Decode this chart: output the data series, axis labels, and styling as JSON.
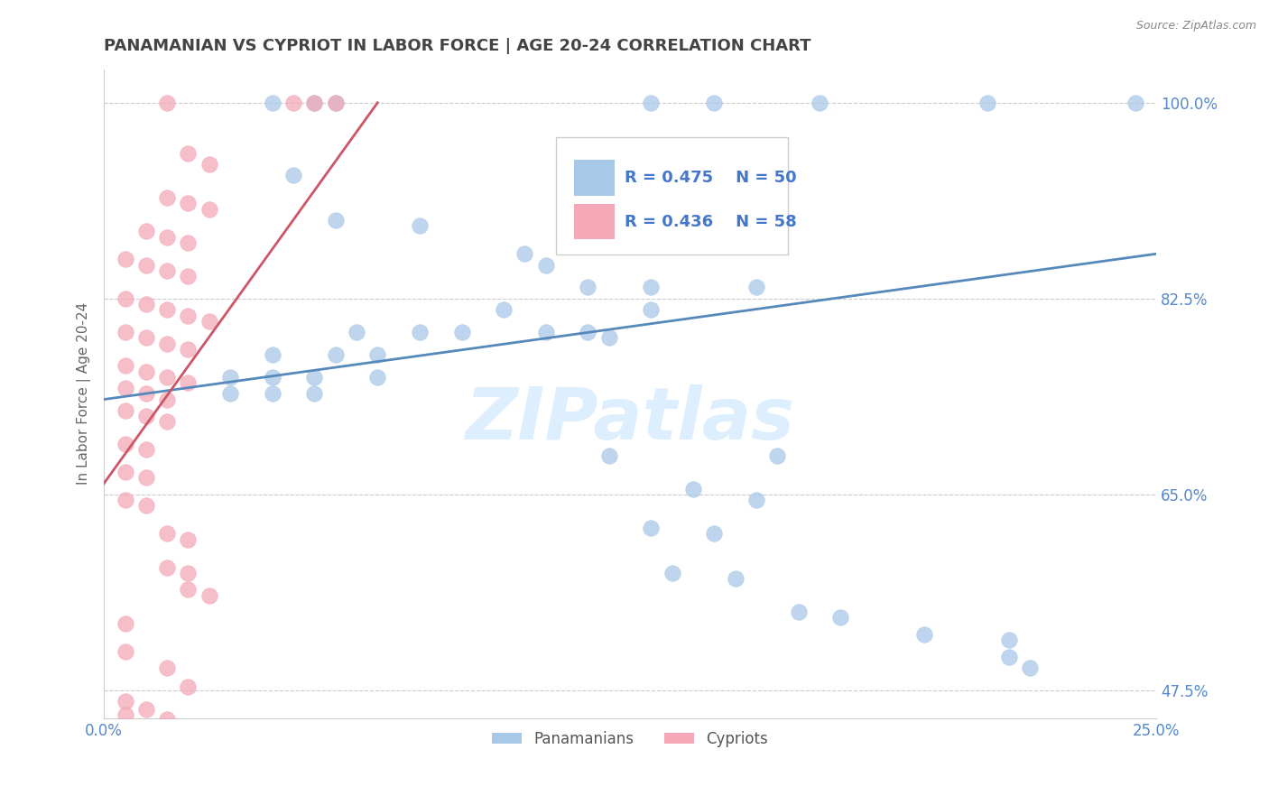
{
  "title": "PANAMANIAN VS CYPRIOT IN LABOR FORCE | AGE 20-24 CORRELATION CHART",
  "source": "Source: ZipAtlas.com",
  "ylabel": "In Labor Force | Age 20-24",
  "xlim": [
    0.0,
    0.25
  ],
  "ylim": [
    0.45,
    1.03
  ],
  "yticks": [
    0.475,
    0.65,
    0.825,
    1.0
  ],
  "ytick_labels": [
    "47.5%",
    "65.0%",
    "82.5%",
    "100.0%"
  ],
  "xticks": [
    0.0,
    0.03125,
    0.0625,
    0.09375,
    0.125,
    0.15625,
    0.1875,
    0.21875,
    0.25
  ],
  "xtick_labels": [
    "0.0%",
    "",
    "",
    "",
    "",
    "",
    "",
    "",
    "25.0%"
  ],
  "legend_r_blue": "R = 0.475",
  "legend_n_blue": "N = 50",
  "legend_r_pink": "R = 0.436",
  "legend_n_pink": "N = 58",
  "blue_color": "#a8c8e8",
  "pink_color": "#f4a8b8",
  "blue_fill": "#a8c8e8",
  "pink_fill": "#f4a8b8",
  "blue_line_color": "#5588bb",
  "pink_line_color": "#cc5566",
  "blue_scatter": [
    [
      0.04,
      1.0
    ],
    [
      0.05,
      1.0
    ],
    [
      0.055,
      1.0
    ],
    [
      0.13,
      1.0
    ],
    [
      0.145,
      1.0
    ],
    [
      0.17,
      1.0
    ],
    [
      0.21,
      1.0
    ],
    [
      0.245,
      1.0
    ],
    [
      0.045,
      0.935
    ],
    [
      0.055,
      0.895
    ],
    [
      0.075,
      0.89
    ],
    [
      0.1,
      0.865
    ],
    [
      0.105,
      0.855
    ],
    [
      0.115,
      0.835
    ],
    [
      0.13,
      0.835
    ],
    [
      0.155,
      0.835
    ],
    [
      0.095,
      0.815
    ],
    [
      0.13,
      0.815
    ],
    [
      0.06,
      0.795
    ],
    [
      0.075,
      0.795
    ],
    [
      0.085,
      0.795
    ],
    [
      0.105,
      0.795
    ],
    [
      0.115,
      0.795
    ],
    [
      0.12,
      0.79
    ],
    [
      0.04,
      0.775
    ],
    [
      0.055,
      0.775
    ],
    [
      0.065,
      0.775
    ],
    [
      0.03,
      0.755
    ],
    [
      0.04,
      0.755
    ],
    [
      0.05,
      0.755
    ],
    [
      0.065,
      0.755
    ],
    [
      0.03,
      0.74
    ],
    [
      0.04,
      0.74
    ],
    [
      0.05,
      0.74
    ],
    [
      0.12,
      0.685
    ],
    [
      0.16,
      0.685
    ],
    [
      0.14,
      0.655
    ],
    [
      0.155,
      0.645
    ],
    [
      0.13,
      0.62
    ],
    [
      0.145,
      0.615
    ],
    [
      0.135,
      0.58
    ],
    [
      0.15,
      0.575
    ],
    [
      0.165,
      0.545
    ],
    [
      0.175,
      0.54
    ],
    [
      0.195,
      0.525
    ],
    [
      0.215,
      0.52
    ],
    [
      0.215,
      0.505
    ],
    [
      0.22,
      0.495
    ]
  ],
  "pink_scatter": [
    [
      0.015,
      1.0
    ],
    [
      0.045,
      1.0
    ],
    [
      0.05,
      1.0
    ],
    [
      0.055,
      1.0
    ],
    [
      0.02,
      0.955
    ],
    [
      0.025,
      0.945
    ],
    [
      0.015,
      0.915
    ],
    [
      0.02,
      0.91
    ],
    [
      0.025,
      0.905
    ],
    [
      0.01,
      0.885
    ],
    [
      0.015,
      0.88
    ],
    [
      0.02,
      0.875
    ],
    [
      0.005,
      0.86
    ],
    [
      0.01,
      0.855
    ],
    [
      0.015,
      0.85
    ],
    [
      0.02,
      0.845
    ],
    [
      0.005,
      0.825
    ],
    [
      0.01,
      0.82
    ],
    [
      0.015,
      0.815
    ],
    [
      0.02,
      0.81
    ],
    [
      0.025,
      0.805
    ],
    [
      0.005,
      0.795
    ],
    [
      0.01,
      0.79
    ],
    [
      0.015,
      0.785
    ],
    [
      0.02,
      0.78
    ],
    [
      0.005,
      0.765
    ],
    [
      0.01,
      0.76
    ],
    [
      0.015,
      0.755
    ],
    [
      0.02,
      0.75
    ],
    [
      0.005,
      0.745
    ],
    [
      0.01,
      0.74
    ],
    [
      0.015,
      0.735
    ],
    [
      0.005,
      0.725
    ],
    [
      0.01,
      0.72
    ],
    [
      0.015,
      0.715
    ],
    [
      0.005,
      0.695
    ],
    [
      0.01,
      0.69
    ],
    [
      0.005,
      0.67
    ],
    [
      0.01,
      0.665
    ],
    [
      0.005,
      0.645
    ],
    [
      0.01,
      0.64
    ],
    [
      0.015,
      0.615
    ],
    [
      0.02,
      0.61
    ],
    [
      0.015,
      0.585
    ],
    [
      0.02,
      0.58
    ],
    [
      0.02,
      0.565
    ],
    [
      0.025,
      0.56
    ],
    [
      0.005,
      0.535
    ],
    [
      0.005,
      0.51
    ],
    [
      0.015,
      0.495
    ],
    [
      0.02,
      0.478
    ],
    [
      0.005,
      0.465
    ],
    [
      0.01,
      0.458
    ],
    [
      0.005,
      0.453
    ],
    [
      0.015,
      0.449
    ]
  ],
  "blue_line": [
    [
      0.0,
      0.735
    ],
    [
      0.25,
      0.865
    ]
  ],
  "pink_line": [
    [
      0.0,
      0.66
    ],
    [
      0.065,
      1.0
    ]
  ],
  "background_color": "#ffffff",
  "grid_color": "#cccccc",
  "watermark_color": "#ddeeff",
  "title_color": "#444444",
  "axis_label_color": "#666666",
  "tick_color": "#5588cc",
  "legend_text_color": "#4477cc"
}
